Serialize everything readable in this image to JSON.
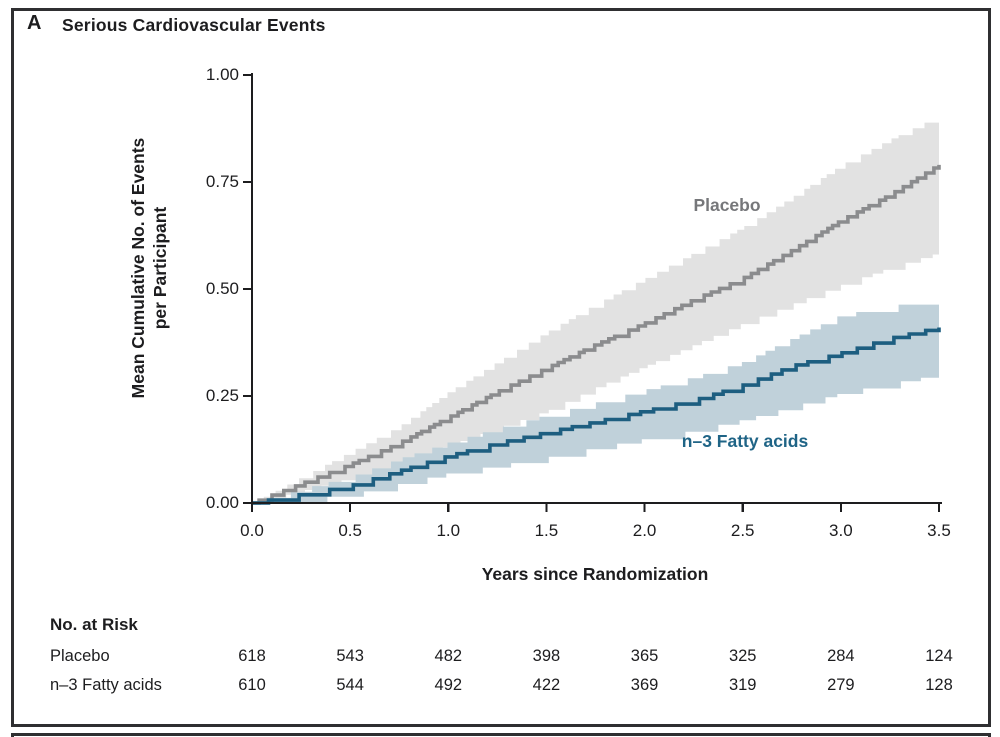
{
  "panel": {
    "label": "A",
    "title": "Serious Cardiovascular Events"
  },
  "colors": {
    "text": "#1d1d1f",
    "border": "#2f2f31",
    "background": "#ffffff"
  },
  "chart_data": {
    "type": "line",
    "subtype": "step-cumulative-mean-with-ci-bands",
    "title": "Serious Cardiovascular Events",
    "xlabel": "Years since Randomization",
    "ylabel_line1": "Mean Cumulative No. of Events",
    "ylabel_line2": "per Participant",
    "xlim": [
      0,
      3.5
    ],
    "ylim": [
      0,
      1.0
    ],
    "grid": false,
    "legend_position": "labels-on-chart",
    "xtick_labels": [
      "0.0",
      "0.5",
      "1.0",
      "1.5",
      "2.0",
      "2.5",
      "3.0",
      "3.5"
    ],
    "ytick_labels": [
      "0.00",
      "0.25",
      "0.50",
      "0.75",
      "1.00"
    ],
    "x": [
      0,
      0.25,
      0.5,
      0.75,
      1.0,
      1.25,
      1.5,
      1.75,
      2.0,
      2.25,
      2.5,
      2.75,
      3.0,
      3.25,
      3.5
    ],
    "series": [
      {
        "name": "Placebo",
        "line_color": "#8b8c8e",
        "band_color": "#e2e2e2",
        "label_color": "#76777a",
        "values": [
          0,
          0.045,
          0.09,
          0.14,
          0.2,
          0.26,
          0.315,
          0.37,
          0.42,
          0.475,
          0.525,
          0.59,
          0.66,
          0.72,
          0.79
        ],
        "ci_upper": [
          0,
          0.06,
          0.12,
          0.18,
          0.26,
          0.33,
          0.4,
          0.465,
          0.525,
          0.585,
          0.645,
          0.715,
          0.79,
          0.85,
          0.905
        ],
        "ci_lower": [
          0,
          0.028,
          0.058,
          0.09,
          0.135,
          0.175,
          0.215,
          0.27,
          0.32,
          0.37,
          0.42,
          0.465,
          0.51,
          0.55,
          0.585
        ]
      },
      {
        "name": "n–3 Fatty acids",
        "line_color": "#1d5e80",
        "band_color": "#c0d1da",
        "label_color": "#1f6486",
        "values": [
          0,
          0.02,
          0.04,
          0.075,
          0.11,
          0.14,
          0.165,
          0.19,
          0.215,
          0.24,
          0.275,
          0.32,
          0.35,
          0.385,
          0.41
        ],
        "ci_upper": [
          0,
          0.033,
          0.062,
          0.104,
          0.142,
          0.175,
          0.206,
          0.235,
          0.265,
          0.295,
          0.33,
          0.385,
          0.44,
          0.46,
          0.48
        ],
        "ci_lower": [
          0,
          0.008,
          0.02,
          0.045,
          0.07,
          0.088,
          0.107,
          0.13,
          0.15,
          0.17,
          0.195,
          0.225,
          0.257,
          0.28,
          0.3
        ]
      }
    ],
    "risk_table": {
      "heading": "No. at Risk",
      "rows": [
        {
          "label": "Placebo",
          "counts": [
            "618",
            "543",
            "482",
            "398",
            "365",
            "325",
            "284",
            "124"
          ]
        },
        {
          "label": "n–3 Fatty acids",
          "counts": [
            "610",
            "544",
            "492",
            "422",
            "369",
            "319",
            "279",
            "128"
          ]
        }
      ]
    }
  }
}
